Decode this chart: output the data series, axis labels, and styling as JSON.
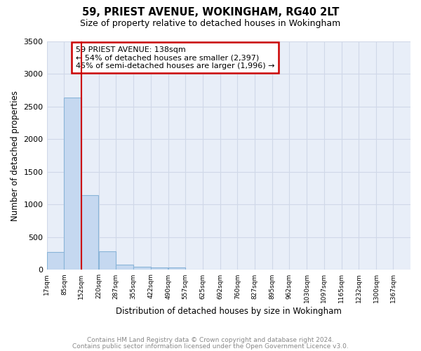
{
  "title1": "59, PRIEST AVENUE, WOKINGHAM, RG40 2LT",
  "title2": "Size of property relative to detached houses in Wokingham",
  "xlabel": "Distribution of detached houses by size in Wokingham",
  "ylabel": "Number of detached properties",
  "footnote1": "Contains HM Land Registry data © Crown copyright and database right 2024.",
  "footnote2": "Contains public sector information licensed under the Open Government Licence v3.0.",
  "bin_labels": [
    "17sqm",
    "85sqm",
    "152sqm",
    "220sqm",
    "287sqm",
    "355sqm",
    "422sqm",
    "490sqm",
    "557sqm",
    "625sqm",
    "692sqm",
    "760sqm",
    "827sqm",
    "895sqm",
    "962sqm",
    "1030sqm",
    "1097sqm",
    "1165sqm",
    "1232sqm",
    "1300sqm",
    "1367sqm"
  ],
  "bar_heights": [
    270,
    2640,
    1150,
    280,
    80,
    50,
    35,
    35,
    0,
    0,
    0,
    0,
    0,
    0,
    0,
    0,
    0,
    0,
    0,
    0
  ],
  "bar_color": "#c5d8f0",
  "bar_edge_color": "#8ab4d8",
  "red_line_x": 152,
  "bin_edges": [
    17,
    85,
    152,
    220,
    287,
    355,
    422,
    490,
    557,
    625,
    692,
    760,
    827,
    895,
    962,
    1030,
    1097,
    1165,
    1232,
    1300,
    1367
  ],
  "bin_width": 67,
  "annotation_line1": "59 PRIEST AVENUE: 138sqm",
  "annotation_line2": "← 54% of detached houses are smaller (2,397)",
  "annotation_line3": "45% of semi-detached houses are larger (1,996) →",
  "annotation_box_color": "#ffffff",
  "annotation_box_edge": "#cc0000",
  "red_line_color": "#cc0000",
  "grid_color": "#d0d8e8",
  "background_color": "#e8eef8",
  "fig_background": "#ffffff",
  "ylim": [
    0,
    3500
  ],
  "yticks": [
    0,
    500,
    1000,
    1500,
    2000,
    2500,
    3000,
    3500
  ]
}
